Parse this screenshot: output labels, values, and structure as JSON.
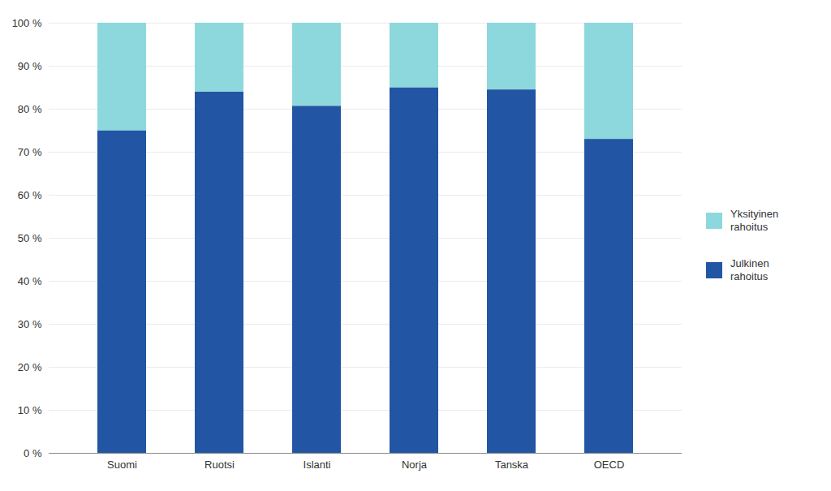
{
  "chart_data": {
    "type": "bar",
    "stacked": true,
    "categories": [
      "Suomi",
      "Ruotsi",
      "Islanti",
      "Norja",
      "Tanska",
      "OECD"
    ],
    "series": [
      {
        "name": "Julkinen\nrahoitus",
        "color": "#2255A4",
        "values": [
          75.0,
          84.0,
          80.7,
          85.0,
          84.5,
          73.0
        ]
      },
      {
        "name": "Yksityinen\nrahoitus",
        "color": "#8DD8DC",
        "values": [
          25.0,
          16.0,
          19.3,
          15.0,
          15.5,
          27.0
        ]
      }
    ],
    "ylim": [
      0,
      100
    ],
    "yticks": [
      {
        "value": 0,
        "label": "0 %"
      },
      {
        "value": 10,
        "label": "10 %"
      },
      {
        "value": 20,
        "label": "20 %"
      },
      {
        "value": 30,
        "label": "30 %"
      },
      {
        "value": 40,
        "label": "40 %"
      },
      {
        "value": 50,
        "label": "50 %"
      },
      {
        "value": 60,
        "label": "60 %"
      },
      {
        "value": 70,
        "label": "70 %"
      },
      {
        "value": 80,
        "label": "80 %"
      },
      {
        "value": 90,
        "label": "90 %"
      },
      {
        "value": 100,
        "label": "100 %"
      }
    ],
    "grid": true,
    "legend": "right"
  }
}
